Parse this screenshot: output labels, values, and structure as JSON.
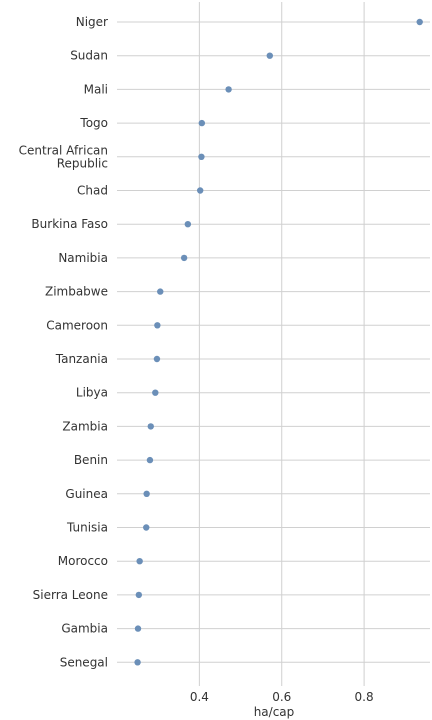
{
  "chart_data": {
    "type": "scatter",
    "orientation": "horizontal-dot",
    "categories": [
      "Niger",
      "Sudan",
      "Mali",
      "Togo",
      "Central African Republic",
      "Chad",
      "Burkina Faso",
      "Namibia",
      "Zimbabwe",
      "Cameroon",
      "Tanzania",
      "Libya",
      "Zambia",
      "Benin",
      "Guinea",
      "Tunisia",
      "Morocco",
      "Sierra Leone",
      "Gambia",
      "Senegal"
    ],
    "category_lines": [
      [
        "Niger"
      ],
      [
        "Sudan"
      ],
      [
        "Mali"
      ],
      [
        "Togo"
      ],
      [
        "Central African",
        "Republic"
      ],
      [
        "Chad"
      ],
      [
        "Burkina Faso"
      ],
      [
        "Namibia"
      ],
      [
        "Zimbabwe"
      ],
      [
        "Cameroon"
      ],
      [
        "Tanzania"
      ],
      [
        "Libya"
      ],
      [
        "Zambia"
      ],
      [
        "Benin"
      ],
      [
        "Guinea"
      ],
      [
        "Tunisia"
      ],
      [
        "Morocco"
      ],
      [
        "Sierra Leone"
      ],
      [
        "Gambia"
      ],
      [
        "Senegal"
      ]
    ],
    "values": [
      0.935,
      0.571,
      0.471,
      0.406,
      0.405,
      0.402,
      0.372,
      0.363,
      0.305,
      0.298,
      0.297,
      0.293,
      0.282,
      0.28,
      0.272,
      0.271,
      0.255,
      0.253,
      0.251,
      0.25
    ],
    "xlabel": "ha/cap",
    "ylabel": "",
    "title": "",
    "xlim": [
      0.2,
      0.96
    ],
    "xticks": [
      0.4,
      0.6,
      0.8
    ],
    "xtick_labels": [
      "0.4",
      "0.6",
      "0.8"
    ],
    "grid": true,
    "point_color": "#6b8fb8",
    "grid_color": "#d0d0d0"
  }
}
